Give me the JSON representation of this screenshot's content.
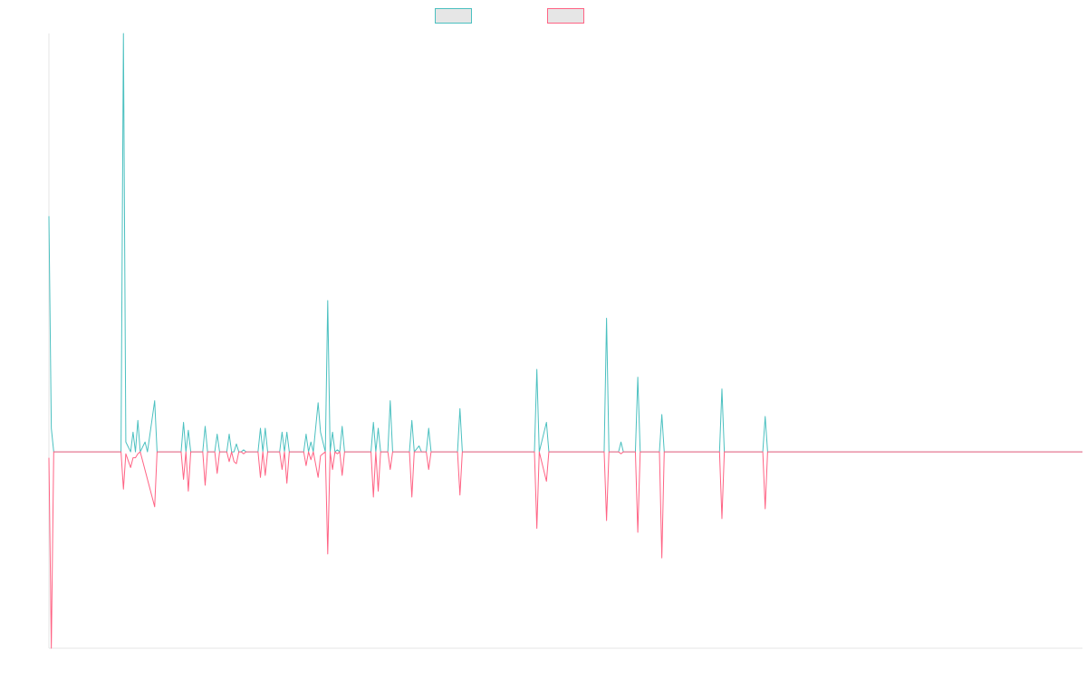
{
  "chart_data": {
    "type": "line",
    "title": "",
    "xlabel": "",
    "ylabel": "",
    "grid": false,
    "legend_position": "top-center",
    "x_index_range": [
      0,
      430
    ],
    "ylim": [
      -1.0,
      2.13
    ],
    "series": [
      {
        "key": "upper",
        "color": "#4bc0c0",
        "points": [
          [
            0,
            1.2
          ],
          [
            1,
            0.12
          ],
          [
            2,
            0
          ],
          [
            30,
            0
          ],
          [
            31,
            2.13
          ],
          [
            32,
            0.05
          ],
          [
            34,
            0
          ],
          [
            35,
            0.1
          ],
          [
            36,
            0
          ],
          [
            37,
            0.16
          ],
          [
            38,
            0
          ],
          [
            40,
            0.05
          ],
          [
            41,
            0
          ],
          [
            44,
            0.26
          ],
          [
            45,
            0
          ],
          [
            55,
            0
          ],
          [
            56,
            0.15
          ],
          [
            57,
            0
          ],
          [
            58,
            0.11
          ],
          [
            59,
            0
          ],
          [
            64,
            0
          ],
          [
            65,
            0.13
          ],
          [
            66,
            0
          ],
          [
            69,
            0
          ],
          [
            70,
            0.09
          ],
          [
            71,
            0
          ],
          [
            74,
            0
          ],
          [
            75,
            0.09
          ],
          [
            76,
            0
          ],
          [
            77,
            0
          ],
          [
            78,
            0.04
          ],
          [
            79,
            0
          ],
          [
            80,
            0
          ],
          [
            81,
            0.01
          ],
          [
            82,
            0
          ],
          [
            87,
            0
          ],
          [
            88,
            0.12
          ],
          [
            89,
            0
          ],
          [
            90,
            0.12
          ],
          [
            91,
            0
          ],
          [
            96,
            0
          ],
          [
            97,
            0.1
          ],
          [
            98,
            0
          ],
          [
            99,
            0.1
          ],
          [
            100,
            0
          ],
          [
            106,
            0
          ],
          [
            107,
            0.09
          ],
          [
            108,
            0
          ],
          [
            109,
            0.05
          ],
          [
            110,
            0
          ],
          [
            112,
            0.25
          ],
          [
            113,
            0.1
          ],
          [
            115,
            0
          ],
          [
            116,
            0.77
          ],
          [
            117,
            0
          ],
          [
            118,
            0.1
          ],
          [
            119,
            0
          ],
          [
            120,
            0.01
          ],
          [
            121,
            0
          ],
          [
            122,
            0.13
          ],
          [
            123,
            0
          ],
          [
            134,
            0
          ],
          [
            135,
            0.15
          ],
          [
            136,
            0
          ],
          [
            137,
            0.12
          ],
          [
            138,
            0
          ],
          [
            141,
            0
          ],
          [
            142,
            0.26
          ],
          [
            143,
            0
          ],
          [
            150,
            0
          ],
          [
            151,
            0.16
          ],
          [
            152,
            0
          ],
          [
            154,
            0.03
          ],
          [
            155,
            0
          ],
          [
            157,
            0
          ],
          [
            158,
            0.12
          ],
          [
            159,
            0
          ],
          [
            170,
            0
          ],
          [
            171,
            0.22
          ],
          [
            172,
            0
          ],
          [
            202,
            0
          ],
          [
            203,
            0.42
          ],
          [
            204,
            0
          ],
          [
            207,
            0.15
          ],
          [
            208,
            0
          ],
          [
            231,
            0
          ],
          [
            232,
            0.68
          ],
          [
            233,
            0
          ],
          [
            237,
            0
          ],
          [
            238,
            0.05
          ],
          [
            239,
            0
          ],
          [
            244,
            0
          ],
          [
            245,
            0.38
          ],
          [
            246,
            0
          ],
          [
            254,
            0
          ],
          [
            255,
            0.19
          ],
          [
            256,
            0
          ],
          [
            279,
            0
          ],
          [
            280,
            0.32
          ],
          [
            281,
            0
          ],
          [
            297,
            0
          ],
          [
            298,
            0.18
          ],
          [
            299,
            0
          ],
          [
            430,
            0
          ]
        ]
      },
      {
        "key": "lower",
        "color": "#ff6384",
        "points": [
          [
            0,
            -0.03
          ],
          [
            1,
            -1.0
          ],
          [
            2,
            0
          ],
          [
            30,
            0
          ],
          [
            31,
            -0.19
          ],
          [
            32,
            -0.01
          ],
          [
            34,
            -0.08
          ],
          [
            35,
            -0.03
          ],
          [
            36,
            -0.03
          ],
          [
            37,
            -0.01
          ],
          [
            38,
            0
          ],
          [
            44,
            -0.28
          ],
          [
            45,
            0
          ],
          [
            55,
            0
          ],
          [
            56,
            -0.14
          ],
          [
            57,
            0
          ],
          [
            58,
            -0.2
          ],
          [
            59,
            0
          ],
          [
            64,
            0
          ],
          [
            65,
            -0.17
          ],
          [
            66,
            0
          ],
          [
            69,
            0
          ],
          [
            70,
            -0.11
          ],
          [
            71,
            0
          ],
          [
            74,
            0
          ],
          [
            75,
            -0.05
          ],
          [
            76,
            0
          ],
          [
            77,
            -0.05
          ],
          [
            78,
            -0.06
          ],
          [
            79,
            0
          ],
          [
            80,
            0
          ],
          [
            81,
            -0.01
          ],
          [
            82,
            0
          ],
          [
            87,
            0
          ],
          [
            88,
            -0.13
          ],
          [
            89,
            0
          ],
          [
            90,
            -0.12
          ],
          [
            91,
            0
          ],
          [
            96,
            0
          ],
          [
            97,
            -0.09
          ],
          [
            98,
            0
          ],
          [
            99,
            -0.16
          ],
          [
            100,
            0
          ],
          [
            106,
            0
          ],
          [
            107,
            -0.07
          ],
          [
            108,
            0
          ],
          [
            109,
            -0.04
          ],
          [
            110,
            0
          ],
          [
            112,
            -0.13
          ],
          [
            113,
            -0.02
          ],
          [
            115,
            0
          ],
          [
            116,
            -0.52
          ],
          [
            117,
            0
          ],
          [
            118,
            -0.09
          ],
          [
            119,
            0
          ],
          [
            120,
            -0.01
          ],
          [
            121,
            0
          ],
          [
            122,
            -0.12
          ],
          [
            123,
            0
          ],
          [
            134,
            0
          ],
          [
            135,
            -0.23
          ],
          [
            136,
            0
          ],
          [
            137,
            -0.2
          ],
          [
            138,
            0
          ],
          [
            141,
            0
          ],
          [
            142,
            -0.09
          ],
          [
            143,
            0
          ],
          [
            150,
            0
          ],
          [
            151,
            -0.23
          ],
          [
            152,
            0
          ],
          [
            157,
            0
          ],
          [
            158,
            -0.09
          ],
          [
            159,
            0
          ],
          [
            170,
            0
          ],
          [
            171,
            -0.22
          ],
          [
            172,
            0
          ],
          [
            202,
            0
          ],
          [
            203,
            -0.39
          ],
          [
            204,
            0
          ],
          [
            207,
            -0.15
          ],
          [
            208,
            0
          ],
          [
            231,
            0
          ],
          [
            232,
            -0.35
          ],
          [
            233,
            0
          ],
          [
            237,
            0
          ],
          [
            238,
            -0.01
          ],
          [
            239,
            0
          ],
          [
            244,
            0
          ],
          [
            245,
            -0.41
          ],
          [
            246,
            0
          ],
          [
            254,
            0
          ],
          [
            255,
            -0.54
          ],
          [
            256,
            0
          ],
          [
            279,
            0
          ],
          [
            280,
            -0.34
          ],
          [
            281,
            0
          ],
          [
            297,
            0
          ],
          [
            298,
            -0.29
          ],
          [
            299,
            0
          ],
          [
            430,
            0
          ]
        ]
      }
    ]
  }
}
